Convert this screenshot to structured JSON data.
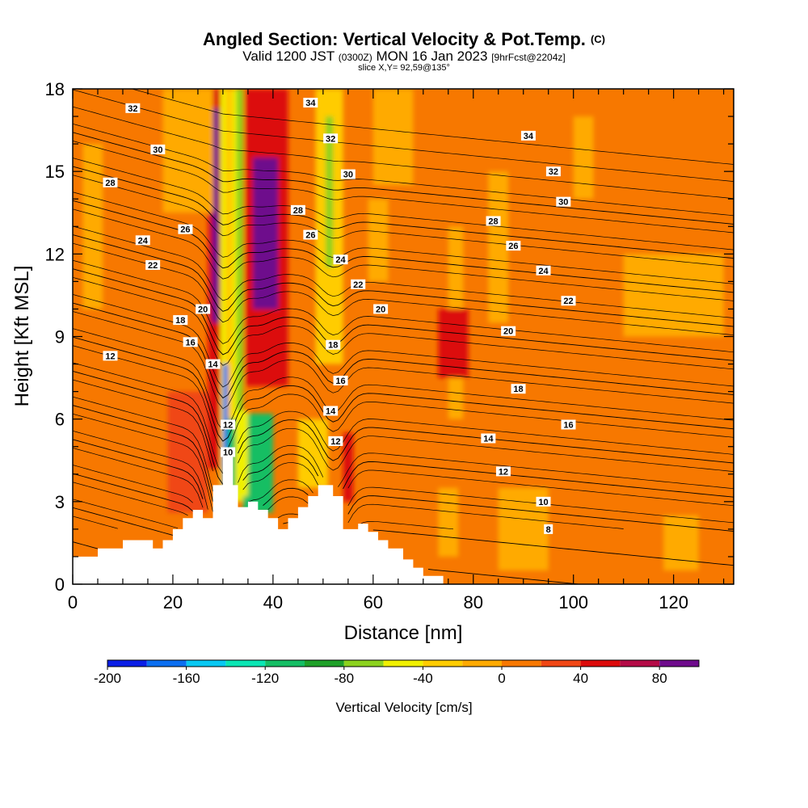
{
  "header": {
    "title": "Angled Section: Vertical Velocity & Pot.Temp.",
    "title_mark": "(C)",
    "valid_prefix": "Valid 1200 JST",
    "valid_utc": "(0300Z)",
    "valid_date": "MON 16 Jan 2023",
    "forecast": "[9hrFcst@2204z]",
    "slice": "slice X,Y= 92,59@135°"
  },
  "chart_data": {
    "type": "heatmap",
    "title": "Angled Section: Vertical Velocity & Pot.Temp.",
    "xlabel": "Distance [nm]",
    "ylabel": "Height [Kft MSL]",
    "xlim": [
      0,
      132
    ],
    "ylim": [
      0,
      18
    ],
    "x_ticks": [
      0,
      20,
      40,
      60,
      80,
      100,
      120
    ],
    "y_ticks": [
      0,
      3,
      6,
      9,
      12,
      15,
      18
    ],
    "colorbar": {
      "label": "Vertical Velocity [cm/s]",
      "range": [
        -200,
        100
      ],
      "tick_values": [
        -200,
        -160,
        -120,
        -80,
        -40,
        0,
        40,
        80
      ],
      "colors": [
        "#0a1ee6",
        "#0a6ef0",
        "#08c8f2",
        "#0ae6b4",
        "#14be64",
        "#1ea028",
        "#8cd21e",
        "#f0f000",
        "#ffcc00",
        "#ffaa00",
        "#f77800",
        "#f04614",
        "#dc0a0a",
        "#b40a46",
        "#6e0a8c"
      ]
    },
    "background_value": 10,
    "terrain": [
      [
        0,
        1
      ],
      [
        5,
        1
      ],
      [
        5,
        1.3
      ],
      [
        10,
        1.3
      ],
      [
        10,
        1.6
      ],
      [
        16,
        1.6
      ],
      [
        16,
        1.3
      ],
      [
        18,
        1.3
      ],
      [
        18,
        1.6
      ],
      [
        20,
        1.6
      ],
      [
        20,
        2
      ],
      [
        22,
        2
      ],
      [
        22,
        2.4
      ],
      [
        24,
        2.4
      ],
      [
        24,
        2.7
      ],
      [
        26,
        2.7
      ],
      [
        26,
        2.4
      ],
      [
        28,
        2.4
      ],
      [
        28,
        3.6
      ],
      [
        30,
        3.6
      ],
      [
        30,
        4.8
      ],
      [
        32,
        4.8
      ],
      [
        32,
        3.6
      ],
      [
        33,
        3.6
      ],
      [
        33,
        2.8
      ],
      [
        35,
        2.8
      ],
      [
        35,
        3
      ],
      [
        37,
        3
      ],
      [
        37,
        2.7
      ],
      [
        39,
        2.7
      ],
      [
        39,
        2.4
      ],
      [
        41,
        2.4
      ],
      [
        41,
        2
      ],
      [
        43,
        2
      ],
      [
        43,
        2.4
      ],
      [
        45,
        2.4
      ],
      [
        45,
        2.8
      ],
      [
        47,
        2.8
      ],
      [
        47,
        3.2
      ],
      [
        49,
        3.2
      ],
      [
        49,
        3.6
      ],
      [
        52,
        3.6
      ],
      [
        52,
        3.2
      ],
      [
        54,
        3.2
      ],
      [
        54,
        2
      ],
      [
        57,
        2
      ],
      [
        57,
        2.2
      ],
      [
        59,
        2.2
      ],
      [
        59,
        1.9
      ],
      [
        61,
        1.9
      ],
      [
        61,
        1.6
      ],
      [
        63,
        1.6
      ],
      [
        63,
        1.3
      ],
      [
        66,
        1.3
      ],
      [
        66,
        0.9
      ],
      [
        68,
        0.9
      ],
      [
        68,
        0.6
      ],
      [
        70,
        0.6
      ],
      [
        70,
        0.3
      ],
      [
        74,
        0.3
      ],
      [
        74,
        0
      ]
    ],
    "contour_levels": [
      8,
      10,
      12,
      14,
      16,
      18,
      20,
      22,
      24,
      26,
      28,
      30,
      32,
      34
    ],
    "contour_labels": [
      {
        "text": "32",
        "x": 12,
        "y": 17.3
      },
      {
        "text": "30",
        "x": 17,
        "y": 15.8
      },
      {
        "text": "28",
        "x": 7.5,
        "y": 14.6
      },
      {
        "text": "26",
        "x": 22.5,
        "y": 12.9
      },
      {
        "text": "24",
        "x": 14,
        "y": 12.5
      },
      {
        "text": "22",
        "x": 16,
        "y": 11.6
      },
      {
        "text": "20",
        "x": 26,
        "y": 10.0
      },
      {
        "text": "18",
        "x": 21.5,
        "y": 9.6
      },
      {
        "text": "16",
        "x": 23.5,
        "y": 8.8
      },
      {
        "text": "14",
        "x": 28,
        "y": 8.0
      },
      {
        "text": "12",
        "x": 7.5,
        "y": 8.3
      },
      {
        "text": "12",
        "x": 31,
        "y": 5.8
      },
      {
        "text": "10",
        "x": 31,
        "y": 4.8
      },
      {
        "text": "34",
        "x": 47.5,
        "y": 17.5
      },
      {
        "text": "32",
        "x": 51.5,
        "y": 16.2
      },
      {
        "text": "30",
        "x": 55,
        "y": 14.9
      },
      {
        "text": "28",
        "x": 45,
        "y": 13.6
      },
      {
        "text": "26",
        "x": 47.5,
        "y": 12.7
      },
      {
        "text": "24",
        "x": 53.5,
        "y": 11.8
      },
      {
        "text": "22",
        "x": 57,
        "y": 10.9
      },
      {
        "text": "20",
        "x": 61.5,
        "y": 10.0
      },
      {
        "text": "18",
        "x": 52,
        "y": 8.7
      },
      {
        "text": "16",
        "x": 53.5,
        "y": 7.4
      },
      {
        "text": "14",
        "x": 51.5,
        "y": 6.3
      },
      {
        "text": "12",
        "x": 52.5,
        "y": 5.2
      },
      {
        "text": "34",
        "x": 91,
        "y": 16.3
      },
      {
        "text": "32",
        "x": 96,
        "y": 15.0
      },
      {
        "text": "30",
        "x": 98,
        "y": 13.9
      },
      {
        "text": "28",
        "x": 84,
        "y": 13.2
      },
      {
        "text": "26",
        "x": 88,
        "y": 12.3
      },
      {
        "text": "24",
        "x": 94,
        "y": 11.4
      },
      {
        "text": "22",
        "x": 99,
        "y": 10.3
      },
      {
        "text": "20",
        "x": 87,
        "y": 9.2
      },
      {
        "text": "18",
        "x": 89,
        "y": 7.1
      },
      {
        "text": "16",
        "x": 99,
        "y": 5.8
      },
      {
        "text": "14",
        "x": 83,
        "y": 5.3
      },
      {
        "text": "12",
        "x": 86,
        "y": 4.1
      },
      {
        "text": "10",
        "x": 94,
        "y": 3.0
      },
      {
        "text": "8",
        "x": 95,
        "y": 2.0
      }
    ],
    "velocity_features": [
      {
        "kind": "band",
        "x1": 27,
        "x2": 29.5,
        "y_bottom": 4.2,
        "y_top": 18,
        "v": 50
      },
      {
        "kind": "band",
        "x1": 27.8,
        "x2": 29.2,
        "y_bottom": 9.5,
        "y_top": 17.3,
        "v": 90
      },
      {
        "kind": "band",
        "x1": 29.5,
        "x2": 34,
        "y_bottom": 3,
        "y_top": 18,
        "v": -45
      },
      {
        "kind": "band",
        "x1": 32.7,
        "x2": 34,
        "y_bottom": 4.5,
        "y_top": 18,
        "v": -70
      },
      {
        "kind": "band",
        "x1": 30.5,
        "x2": 32,
        "y_bottom": 5,
        "y_top": 18,
        "v": -30
      },
      {
        "kind": "band",
        "x1": 34.5,
        "x2": 43,
        "y_bottom": 7.2,
        "y_top": 18,
        "v": 50
      },
      {
        "kind": "band",
        "x1": 36,
        "x2": 41,
        "y_bottom": 10,
        "y_top": 15.5,
        "v": 90
      },
      {
        "kind": "band",
        "x1": 30,
        "x2": 31,
        "y_bottom": 3.5,
        "y_top": 8,
        "v": -170
      },
      {
        "kind": "band",
        "x1": 31,
        "x2": 32.5,
        "y_bottom": 3.2,
        "y_top": 6,
        "v": -120
      },
      {
        "kind": "band",
        "x1": 34,
        "x2": 40,
        "y_bottom": 2.6,
        "y_top": 6.2,
        "v": -110
      },
      {
        "kind": "band",
        "x1": 32.5,
        "x2": 35,
        "y_bottom": 3.2,
        "y_top": 6.3,
        "v": -60
      },
      {
        "kind": "band",
        "x1": 48.5,
        "x2": 54,
        "y_bottom": 8,
        "y_top": 18,
        "v": -30
      },
      {
        "kind": "band",
        "x1": 50.5,
        "x2": 52,
        "y_bottom": 11.5,
        "y_top": 17,
        "v": -80
      },
      {
        "kind": "band",
        "x1": 45,
        "x2": 51,
        "y_bottom": 3.5,
        "y_top": 6,
        "v": -25
      },
      {
        "kind": "band",
        "x1": 54,
        "x2": 56,
        "y_bottom": 3,
        "y_top": 5.5,
        "v": 50
      },
      {
        "kind": "band",
        "x1": 19,
        "x2": 27,
        "y_bottom": 2.6,
        "y_top": 7,
        "v": 30
      },
      {
        "kind": "band",
        "x1": 18,
        "x2": 28,
        "y_bottom": 13.5,
        "y_top": 18,
        "v": -5
      },
      {
        "kind": "band",
        "x1": 2,
        "x2": 6,
        "y_bottom": 10,
        "y_top": 16,
        "v": -5
      },
      {
        "kind": "band",
        "x1": 75,
        "x2": 78,
        "y_bottom": 6,
        "y_top": 13,
        "v": -5
      },
      {
        "kind": "band",
        "x1": 83,
        "x2": 87,
        "y_bottom": 9.5,
        "y_top": 15,
        "v": -5
      },
      {
        "kind": "band",
        "x1": 85,
        "x2": 95,
        "y_bottom": 0.5,
        "y_top": 3.5,
        "v": -5
      },
      {
        "kind": "band",
        "x1": 110,
        "x2": 130,
        "y_bottom": 9,
        "y_top": 12,
        "v": -5
      },
      {
        "kind": "band",
        "x1": 100,
        "x2": 104,
        "y_bottom": 14,
        "y_top": 17,
        "v": -5
      },
      {
        "kind": "band",
        "x1": 118,
        "x2": 125,
        "y_bottom": 0.5,
        "y_top": 2.5,
        "v": -5
      },
      {
        "kind": "band",
        "x1": 59,
        "x2": 63,
        "y_bottom": 11,
        "y_top": 14,
        "v": -5
      },
      {
        "kind": "band",
        "x1": 73,
        "x2": 77,
        "y_bottom": 1,
        "y_top": 3.5,
        "v": -5
      },
      {
        "kind": "band",
        "x1": 60,
        "x2": 68,
        "y_bottom": 14.5,
        "y_top": 18,
        "v": -5
      },
      {
        "kind": "band",
        "x1": 73,
        "x2": 79,
        "y_bottom": 7.5,
        "y_top": 10,
        "v": 40
      }
    ]
  }
}
